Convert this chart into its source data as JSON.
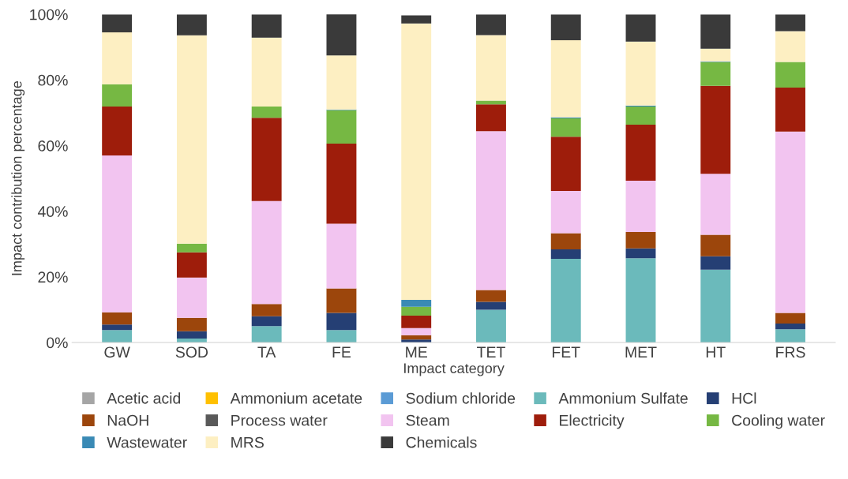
{
  "chart_data": {
    "type": "bar",
    "stacked": true,
    "xlabel": "Impact category",
    "ylabel": "Impact contribution percentage",
    "categories": [
      "GW",
      "SOD",
      "TA",
      "FE",
      "ME",
      "TET",
      "FET",
      "MET",
      "HT",
      "FRS"
    ],
    "ylim": [
      0,
      100
    ],
    "yticks": [
      {
        "value": 0,
        "label": "0%"
      },
      {
        "value": 20,
        "label": "20%"
      },
      {
        "value": 40,
        "label": "40%"
      },
      {
        "value": 60,
        "label": "60%"
      },
      {
        "value": 80,
        "label": "80%"
      },
      {
        "value": 100,
        "label": "100%"
      }
    ],
    "grid": false,
    "legend": "bottom",
    "series": [
      {
        "name": "Acetic acid",
        "color": "#a5a5a5",
        "values": [
          0,
          0,
          0,
          0,
          0,
          0,
          0,
          0,
          0,
          0
        ]
      },
      {
        "name": "Ammonium acetate",
        "color": "#ffc000",
        "values": [
          0,
          0,
          0,
          0,
          0,
          0,
          0,
          0,
          0,
          0
        ]
      },
      {
        "name": "Sodium chloride",
        "color": "#5b9bd5",
        "values": [
          0,
          0,
          0,
          0,
          0,
          0,
          0,
          0,
          0,
          0
        ]
      },
      {
        "name": "Ammonium Sulfate",
        "color": "#6bbabb",
        "values": [
          3.8,
          1.2,
          5.0,
          3.8,
          null,
          10.0,
          25.5,
          25.7,
          22.2,
          4.0
        ]
      },
      {
        "name": "HCl",
        "color": "#253f74",
        "values": [
          1.7,
          2.2,
          3.0,
          5.2,
          0.9,
          2.4,
          2.9,
          3.0,
          4.1,
          1.8
        ]
      },
      {
        "name": "NaOH",
        "color": "#9c460c",
        "values": [
          3.7,
          4.1,
          3.7,
          7.5,
          1.3,
          3.6,
          4.9,
          5.0,
          6.5,
          3.2
        ]
      },
      {
        "name": "Process water",
        "color": "#595959",
        "values": [
          0,
          0,
          0,
          0,
          0,
          0,
          0,
          0,
          0,
          0
        ]
      },
      {
        "name": "Steam",
        "color": "#f2c4f0",
        "values": [
          47.8,
          12.3,
          31.4,
          19.7,
          2.2,
          48.4,
          12.9,
          15.6,
          18.6,
          55.3
        ]
      },
      {
        "name": "Electricity",
        "color": "#9e1d0b",
        "values": [
          14.9,
          7.7,
          25.4,
          24.4,
          3.8,
          8.2,
          16.5,
          17.1,
          26.8,
          13.4
        ]
      },
      {
        "name": "Cooling water",
        "color": "#76b843",
        "values": [
          6.8,
          2.6,
          3.4,
          10.2,
          2.7,
          1.1,
          5.6,
          5.5,
          7.3,
          7.8
        ]
      },
      {
        "name": "Wastewater",
        "color": "#3a8ab5",
        "values": [
          0,
          0,
          0,
          0.2,
          2.1,
          0,
          0.3,
          0.3,
          0.2,
          0
        ]
      },
      {
        "name": "MRS",
        "color": "#fdefc2",
        "values": [
          15.8,
          63.5,
          21.0,
          16.5,
          84.2,
          20.0,
          23.5,
          19.5,
          3.8,
          9.4
        ]
      },
      {
        "name": "Chemicals",
        "color": "#3a3a3a",
        "values": [
          5.5,
          6.4,
          7.1,
          12.7,
          2.5,
          6.3,
          7.9,
          8.3,
          10.5,
          5.1
        ]
      }
    ]
  }
}
